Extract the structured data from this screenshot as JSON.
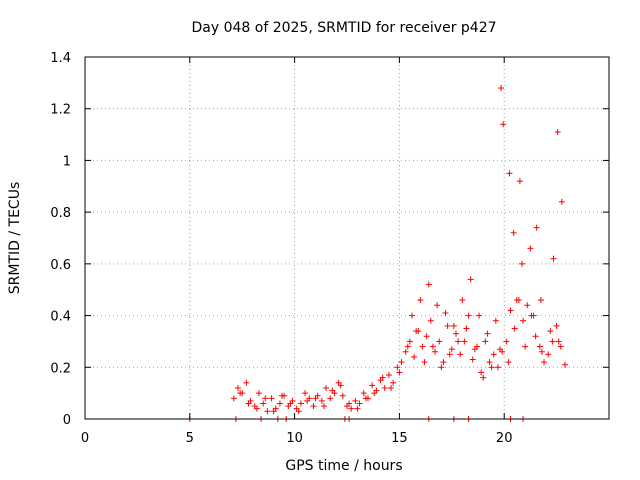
{
  "chart_data": {
    "type": "scatter",
    "title": "Day 048 of 2025, SRMTID for receiver p427",
    "xlabel": "GPS time / hours",
    "ylabel": "SRMTID / TECUs",
    "xlim": [
      0,
      25
    ],
    "ylim": [
      0,
      1.4
    ],
    "xticks": [
      0,
      5,
      10,
      15,
      20
    ],
    "xtick_labels": [
      "0",
      "5",
      "10",
      "15",
      "20"
    ],
    "yticks": [
      0,
      0.2,
      0.4,
      0.6,
      0.8,
      1,
      1.2,
      1.4
    ],
    "ytick_labels": [
      "0",
      "0.2",
      "0.4",
      "0.6",
      "0.8",
      "1",
      "1.2",
      "1.4"
    ],
    "grid": true,
    "marker": "+",
    "series": [
      {
        "name": "SRMTID",
        "color": "#ff0000",
        "x": [
          5.0,
          7.1,
          7.3,
          7.5,
          7.7,
          7.9,
          8.1,
          8.3,
          8.5,
          8.7,
          8.9,
          9.1,
          9.3,
          9.5,
          9.7,
          9.9,
          10.1,
          10.3,
          10.5,
          10.7,
          10.9,
          11.1,
          11.3,
          11.5,
          11.7,
          11.9,
          12.1,
          12.3,
          12.5,
          12.7,
          12.9,
          13.1,
          13.3,
          13.5,
          13.7,
          13.9,
          14.1,
          14.3,
          14.5,
          14.7,
          14.9,
          15.1,
          15.3,
          15.5,
          15.7,
          15.9,
          16.1,
          16.3,
          16.5,
          16.7,
          16.9,
          17.1,
          17.3,
          17.5,
          17.7,
          17.9,
          18.1,
          18.3,
          18.5,
          18.7,
          18.9,
          19.1,
          19.3,
          19.5,
          19.7,
          19.9,
          20.1,
          20.3,
          20.5,
          20.7,
          20.9,
          21.1,
          21.3,
          21.5,
          21.7,
          21.9,
          22.1,
          22.3,
          22.5,
          22.7,
          22.9,
          7.4,
          7.8,
          8.2,
          8.6,
          9.0,
          9.4,
          9.8,
          10.2,
          10.6,
          11.0,
          11.4,
          11.8,
          12.2,
          12.6,
          13.0,
          13.4,
          13.8,
          14.2,
          14.6,
          15.0,
          15.4,
          15.8,
          16.2,
          16.6,
          17.0,
          17.4,
          17.8,
          18.2,
          18.6,
          19.0,
          19.4,
          19.8,
          20.2,
          20.6,
          21.0,
          21.4,
          21.8,
          22.2,
          22.6,
          15.6,
          16.0,
          16.4,
          16.8,
          17.2,
          17.6,
          18.0,
          18.4,
          18.8,
          19.2,
          19.6,
          19.85,
          19.95,
          20.25,
          20.45,
          20.75,
          20.85,
          21.25,
          21.55,
          21.75,
          22.35,
          22.55,
          22.75,
          7.2,
          8.4,
          9.2,
          9.6,
          12.4,
          12.6,
          16.4,
          17.6,
          18.3,
          20.3,
          20.9
        ],
        "y": [
          0.0,
          0.08,
          0.12,
          0.1,
          0.14,
          0.07,
          0.05,
          0.1,
          0.06,
          0.03,
          0.08,
          0.04,
          0.06,
          0.09,
          0.05,
          0.07,
          0.04,
          0.06,
          0.1,
          0.08,
          0.05,
          0.09,
          0.07,
          0.12,
          0.08,
          0.1,
          0.14,
          0.09,
          0.05,
          0.04,
          0.07,
          0.06,
          0.1,
          0.08,
          0.13,
          0.11,
          0.15,
          0.12,
          0.17,
          0.14,
          0.2,
          0.22,
          0.26,
          0.3,
          0.24,
          0.34,
          0.28,
          0.32,
          0.38,
          0.26,
          0.3,
          0.22,
          0.36,
          0.27,
          0.33,
          0.25,
          0.3,
          0.4,
          0.23,
          0.28,
          0.18,
          0.3,
          0.22,
          0.25,
          0.2,
          0.26,
          0.3,
          0.42,
          0.35,
          0.46,
          0.38,
          0.44,
          0.4,
          0.32,
          0.28,
          0.22,
          0.25,
          0.3,
          0.36,
          0.28,
          0.21,
          0.1,
          0.06,
          0.04,
          0.08,
          0.03,
          0.09,
          0.06,
          0.03,
          0.07,
          0.08,
          0.05,
          0.11,
          0.13,
          0.06,
          0.04,
          0.08,
          0.1,
          0.16,
          0.12,
          0.18,
          0.28,
          0.34,
          0.22,
          0.28,
          0.2,
          0.25,
          0.3,
          0.35,
          0.27,
          0.16,
          0.2,
          0.27,
          0.22,
          0.46,
          0.28,
          0.4,
          0.26,
          0.34,
          0.3,
          0.4,
          0.46,
          0.52,
          0.44,
          0.41,
          0.36,
          0.46,
          0.54,
          0.4,
          0.33,
          0.38,
          1.28,
          1.14,
          0.95,
          0.72,
          0.92,
          0.6,
          0.66,
          0.74,
          0.46,
          0.62,
          1.11,
          0.84,
          0.0,
          0.0,
          0.0,
          0.0,
          0.0,
          0.0,
          0.0,
          0.0,
          0.0,
          0.0,
          0.0
        ]
      }
    ]
  }
}
